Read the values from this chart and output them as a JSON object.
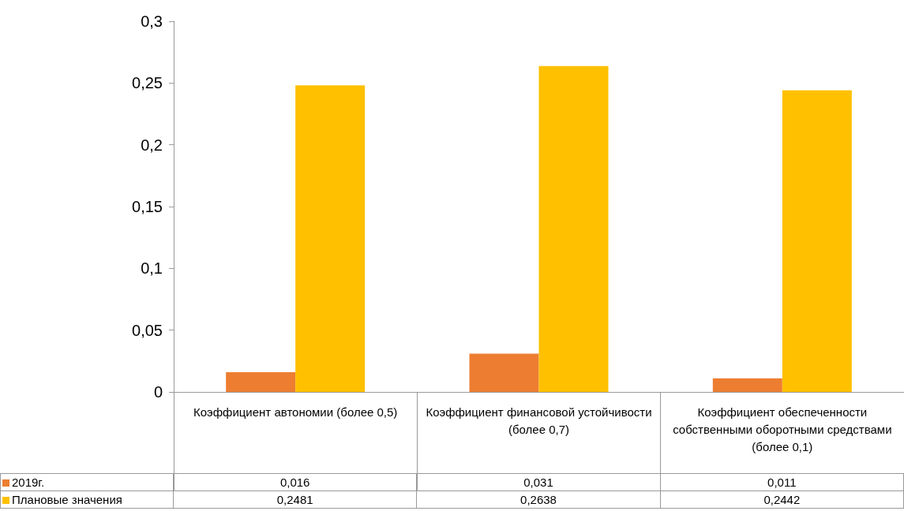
{
  "chart_data": {
    "type": "bar",
    "categories": [
      "Коэффициент автономии (более 0,5)",
      "Коэффициент финансовой устойчивости (более 0,7)",
      "Коэффициент обеспеченности собственными оборотными средствами (более 0,1)"
    ],
    "series": [
      {
        "name": "2019г.",
        "color": "#ed7d31",
        "values": [
          0.016,
          0.031,
          0.011
        ],
        "value_labels": [
          "0,016",
          "0,031",
          "0,011"
        ]
      },
      {
        "name": "Плановые значения",
        "color": "#ffc000",
        "values": [
          0.2481,
          0.2638,
          0.2442
        ],
        "value_labels": [
          "0,2481",
          "0,2638",
          "0,2442"
        ]
      }
    ],
    "ylim": [
      0,
      0.3
    ],
    "yticks": [
      0,
      {
        "value": 0.05,
        "label": "0,05"
      },
      {
        "value": 0.1,
        "label": "0,1"
      },
      {
        "value": 0.15,
        "label": "0,15"
      },
      {
        "value": 0.2,
        "label": "0,2"
      },
      {
        "value": 0.25,
        "label": "0,25"
      },
      {
        "value": 0.3,
        "label": "0,3"
      }
    ],
    "grid": false,
    "legend": "bottom left"
  }
}
